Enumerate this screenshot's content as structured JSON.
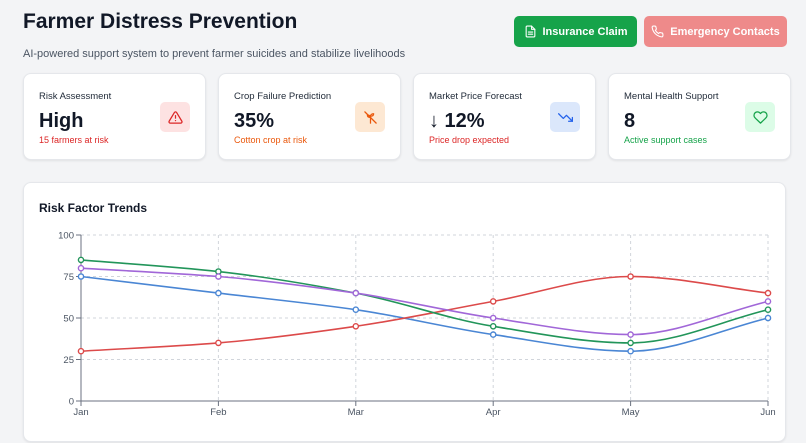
{
  "header": {
    "title": "Farmer Distress Prevention",
    "subtitle": "AI-powered support system to prevent farmer suicides and stabilize livelihoods"
  },
  "actions": {
    "insurance_label": "Insurance Claim",
    "emergency_label": "Emergency Contacts"
  },
  "cards": [
    {
      "label": "Risk Assessment",
      "value": "High",
      "note": "15 farmers at risk",
      "note_color": "#dc2626",
      "icon": "alert-triangle-icon",
      "icon_bg": "#fde2e2",
      "icon_color": "#dc2626"
    },
    {
      "label": "Crop Failure Prediction",
      "value": "35%",
      "note": "Cotton crop at risk",
      "note_color": "#ea580c",
      "icon": "crop-off-icon",
      "icon_bg": "#fde8d3",
      "icon_color": "#ea580c"
    },
    {
      "label": "Market Price Forecast",
      "value": "↓ 12%",
      "note": "Price drop expected",
      "note_color": "#dc2626",
      "icon": "trending-down-icon",
      "icon_bg": "#dbe7fb",
      "icon_color": "#2563eb"
    },
    {
      "label": "Mental Health Support",
      "value": "8",
      "note": "Active support cases",
      "note_color": "#16a34a",
      "icon": "heart-icon",
      "icon_bg": "#dcfce7",
      "icon_color": "#16a34a"
    }
  ],
  "chart_title": "Risk Factor Trends",
  "chart_data": {
    "type": "line",
    "title": "Risk Factor Trends",
    "categories": [
      "Jan",
      "Feb",
      "Mar",
      "Apr",
      "May",
      "Jun"
    ],
    "ylim": [
      0,
      100
    ],
    "yticks": [
      0,
      25,
      50,
      75,
      100
    ],
    "grid": true,
    "series": [
      {
        "color": "#4a86d4",
        "values": [
          75,
          65,
          55,
          40,
          30,
          50
        ]
      },
      {
        "color": "#dc4a4a",
        "values": [
          30,
          35,
          45,
          60,
          75,
          65
        ]
      },
      {
        "color": "#22955a",
        "values": [
          85,
          78,
          65,
          45,
          35,
          55
        ]
      },
      {
        "color": "#a167d8",
        "values": [
          80,
          75,
          65,
          50,
          40,
          60
        ]
      }
    ]
  }
}
